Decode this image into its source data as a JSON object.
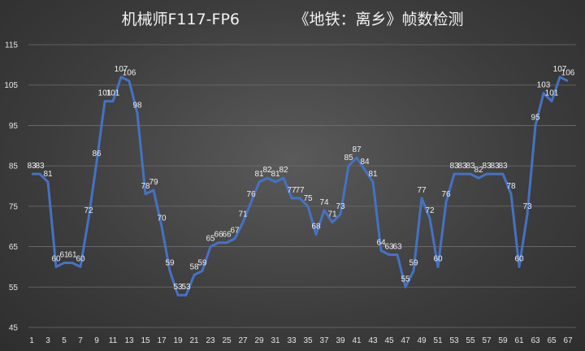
{
  "chart_data": {
    "type": "line",
    "title": "机械师F117-FP6　　　　《地铁：离乡》帧数检测",
    "x": [
      1,
      2,
      3,
      4,
      5,
      6,
      7,
      8,
      9,
      10,
      11,
      12,
      13,
      14,
      15,
      16,
      17,
      18,
      19,
      20,
      21,
      22,
      23,
      24,
      25,
      26,
      27,
      28,
      29,
      30,
      31,
      32,
      33,
      34,
      35,
      36,
      37,
      38,
      39,
      40,
      41,
      42,
      43,
      44,
      45,
      46,
      47,
      48,
      49,
      50,
      51,
      52,
      53,
      54,
      55,
      56,
      57,
      58,
      59,
      60,
      61,
      62,
      63,
      64,
      65,
      66,
      67
    ],
    "x_tick_labels": [
      "1",
      "3",
      "5",
      "7",
      "9",
      "11",
      "13",
      "15",
      "17",
      "19",
      "21",
      "23",
      "25",
      "27",
      "29",
      "31",
      "33",
      "35",
      "37",
      "39",
      "41",
      "43",
      "45",
      "47",
      "49",
      "51",
      "53",
      "55",
      "57",
      "59",
      "61",
      "63",
      "65",
      "67"
    ],
    "y_tick_labels": [
      "45",
      "55",
      "65",
      "75",
      "85",
      "95",
      "105",
      "115"
    ],
    "ylim": [
      45,
      115
    ],
    "grid": true,
    "series": [
      {
        "color": "#4472c4",
        "values": [
          83,
          83,
          81,
          60,
          61,
          61,
          60,
          72,
          86,
          101,
          101,
          107,
          106,
          98,
          78,
          79,
          70,
          59,
          53,
          53,
          58,
          59,
          65,
          66,
          66,
          67,
          71,
          76,
          81,
          82,
          81,
          82,
          77,
          77,
          75,
          68,
          74,
          71,
          73,
          85,
          87,
          84,
          81,
          64,
          63,
          63,
          55,
          59,
          77,
          72,
          60,
          76,
          83,
          83,
          83,
          82,
          83,
          83,
          83,
          78,
          60,
          73,
          95,
          103,
          101,
          107,
          106
        ],
        "labels": [
          "83",
          "83",
          "81",
          "60",
          "61",
          "61",
          "60",
          "72",
          "86",
          "101",
          "101",
          "107",
          "106",
          "98",
          "78",
          "79",
          "70",
          "59",
          "53",
          "53",
          "58",
          "59",
          "65",
          "66",
          "66",
          "67",
          "71",
          "76",
          "81",
          "82",
          "81",
          "82",
          "77",
          "77",
          "75",
          "68",
          "74",
          "71",
          "73",
          "85",
          "87",
          "84",
          "81",
          "64",
          "63",
          "63",
          "55",
          "59",
          "77",
          "72",
          "60",
          "76",
          "83",
          "83",
          "83",
          "82",
          "83",
          "83",
          "83",
          "78",
          "60",
          "73",
          "95",
          "103",
          "101",
          "107",
          "106"
        ]
      }
    ]
  }
}
